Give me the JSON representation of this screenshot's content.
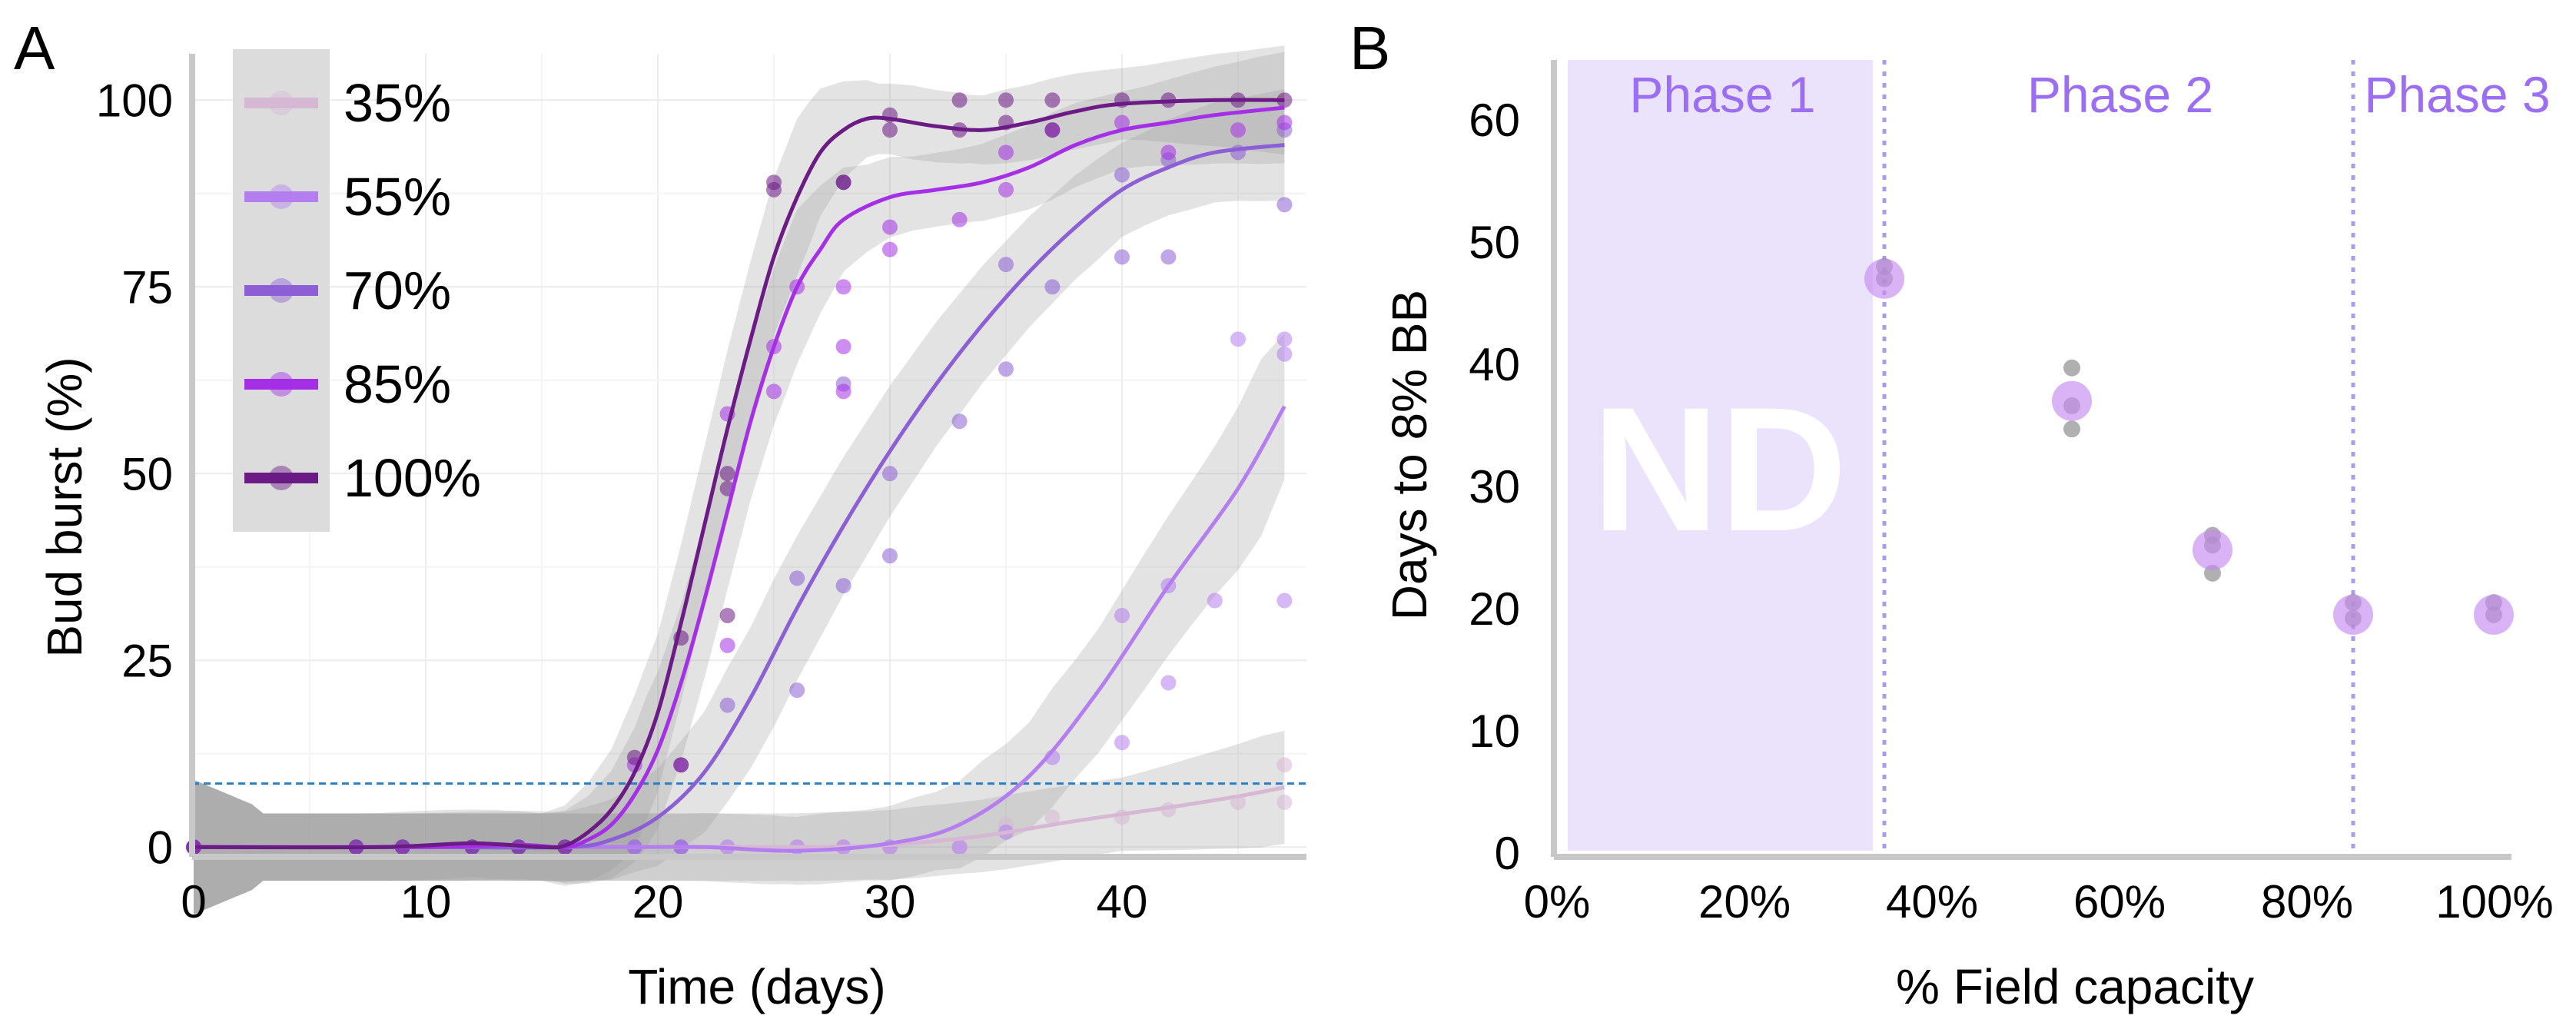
{
  "panel_a": {
    "panel_label": "A",
    "chart_data": {
      "type": "line",
      "title": "",
      "xlabel": "Time (days)",
      "ylabel": "Bud burst (%)",
      "xlim": [
        0,
        48
      ],
      "ylim": [
        -5,
        105
      ],
      "xticks": [
        0,
        10,
        20,
        30,
        40
      ],
      "yticks": [
        0,
        25,
        50,
        75,
        100
      ],
      "threshold_line": 8.5,
      "grid": true,
      "legend_position": "top-left",
      "series": [
        {
          "name": "35%",
          "color": "#d7b8d4",
          "curve": [
            [
              0,
              0
            ],
            [
              10,
              0
            ],
            [
              20,
              0
            ],
            [
              26,
              0
            ],
            [
              30,
              0.3
            ],
            [
              34,
              1.5
            ],
            [
              38,
              3.5
            ],
            [
              42,
              5.3
            ],
            [
              45,
              6.8
            ],
            [
              47,
              8
            ]
          ],
          "points": [
            [
              0,
              0
            ],
            [
              7,
              0
            ],
            [
              9,
              0
            ],
            [
              12,
              0
            ],
            [
              14,
              0
            ],
            [
              16,
              0
            ],
            [
              19,
              0
            ],
            [
              21,
              0
            ],
            [
              23,
              0
            ],
            [
              26,
              0
            ],
            [
              28,
              0
            ],
            [
              30,
              0
            ],
            [
              33,
              0
            ],
            [
              35,
              3
            ],
            [
              37,
              4
            ],
            [
              40,
              4
            ],
            [
              42,
              5
            ],
            [
              45,
              6
            ],
            [
              47,
              6
            ],
            [
              47,
              11
            ]
          ]
        },
        {
          "name": "55%",
          "color": "#b47ef0",
          "curve": [
            [
              0,
              0
            ],
            [
              10,
              0
            ],
            [
              18,
              0
            ],
            [
              22,
              0
            ],
            [
              26,
              -0.5
            ],
            [
              30,
              0.5
            ],
            [
              33,
              3
            ],
            [
              36,
              9.5
            ],
            [
              39,
              21
            ],
            [
              42,
              35
            ],
            [
              45,
              48
            ],
            [
              47,
              59
            ]
          ],
          "points": [
            [
              0,
              0
            ],
            [
              7,
              0
            ],
            [
              9,
              0
            ],
            [
              12,
              0
            ],
            [
              14,
              0
            ],
            [
              16,
              0
            ],
            [
              19,
              0
            ],
            [
              21,
              0
            ],
            [
              23,
              0
            ],
            [
              26,
              0
            ],
            [
              28,
              0
            ],
            [
              30,
              0
            ],
            [
              33,
              0
            ],
            [
              35,
              2
            ],
            [
              37,
              12
            ],
            [
              40,
              14
            ],
            [
              40,
              31
            ],
            [
              42,
              22
            ],
            [
              42,
              35
            ],
            [
              44,
              33
            ],
            [
              45,
              68
            ],
            [
              47,
              68
            ],
            [
              47,
              66
            ],
            [
              47,
              33
            ]
          ]
        },
        {
          "name": "70%",
          "color": "#8d5fd6",
          "curve": [
            [
              0,
              0
            ],
            [
              10,
              0
            ],
            [
              16,
              0
            ],
            [
              18,
              1
            ],
            [
              20,
              4
            ],
            [
              22,
              10
            ],
            [
              24,
              20
            ],
            [
              26,
              32
            ],
            [
              28,
              43
            ],
            [
              30,
              53
            ],
            [
              32,
              62
            ],
            [
              34,
              70
            ],
            [
              36,
              77
            ],
            [
              38,
              83
            ],
            [
              40,
              88
            ],
            [
              42,
              91
            ],
            [
              44,
              93
            ],
            [
              47,
              94
            ]
          ],
          "points": [
            [
              0,
              0
            ],
            [
              7,
              0
            ],
            [
              9,
              0
            ],
            [
              12,
              0
            ],
            [
              14,
              0
            ],
            [
              16,
              0
            ],
            [
              19,
              0
            ],
            [
              21,
              0
            ],
            [
              23,
              19
            ],
            [
              26,
              21
            ],
            [
              26,
              36
            ],
            [
              28,
              35
            ],
            [
              28,
              62
            ],
            [
              30,
              50
            ],
            [
              30,
              39
            ],
            [
              33,
              57
            ],
            [
              35,
              64
            ],
            [
              35,
              78
            ],
            [
              37,
              75
            ],
            [
              40,
              79
            ],
            [
              40,
              90
            ],
            [
              42,
              79
            ],
            [
              42,
              92
            ],
            [
              45,
              93
            ],
            [
              47,
              86
            ],
            [
              47,
              96
            ]
          ]
        },
        {
          "name": "85%",
          "color": "#a52fe6",
          "curve": [
            [
              0,
              0
            ],
            [
              10,
              0
            ],
            [
              14,
              0.3
            ],
            [
              16,
              0
            ],
            [
              17,
              1
            ],
            [
              18,
              3
            ],
            [
              19,
              7
            ],
            [
              20,
              13
            ],
            [
              21,
              22
            ],
            [
              22,
              33
            ],
            [
              23,
              45
            ],
            [
              24,
              57
            ],
            [
              25,
              67
            ],
            [
              26,
              75
            ],
            [
              27,
              80
            ],
            [
              28,
              84
            ],
            [
              30,
              87
            ],
            [
              32,
              88
            ],
            [
              34,
              89
            ],
            [
              36,
              91
            ],
            [
              38,
              94
            ],
            [
              40,
              96
            ],
            [
              42,
              97
            ],
            [
              44,
              98
            ],
            [
              47,
              99
            ]
          ],
          "points": [
            [
              0,
              0
            ],
            [
              19,
              11
            ],
            [
              21,
              11
            ],
            [
              23,
              58
            ],
            [
              23,
              27
            ],
            [
              25,
              61
            ],
            [
              25,
              67
            ],
            [
              26,
              75
            ],
            [
              28,
              61
            ],
            [
              28,
              67
            ],
            [
              28,
              75
            ],
            [
              30,
              83
            ],
            [
              30,
              80
            ],
            [
              33,
              84
            ],
            [
              35,
              88
            ],
            [
              35,
              93
            ],
            [
              37,
              96
            ],
            [
              40,
              97
            ],
            [
              42,
              93
            ],
            [
              45,
              96
            ],
            [
              47,
              97
            ]
          ]
        },
        {
          "name": "100%",
          "color": "#6b1a86",
          "curve": [
            [
              0,
              0
            ],
            [
              8,
              0
            ],
            [
              12,
              0.5
            ],
            [
              15,
              0
            ],
            [
              16,
              0.2
            ],
            [
              17,
              2
            ],
            [
              18,
              5
            ],
            [
              19,
              10
            ],
            [
              20,
              18
            ],
            [
              21,
              30
            ],
            [
              22,
              43
            ],
            [
              23,
              56
            ],
            [
              24,
              68
            ],
            [
              25,
              79
            ],
            [
              26,
              87
            ],
            [
              27,
              93
            ],
            [
              28,
              96
            ],
            [
              29,
              97.5
            ],
            [
              30,
              97.5
            ],
            [
              32,
              96.5
            ],
            [
              34,
              96
            ],
            [
              36,
              97
            ],
            [
              38,
              98.5
            ],
            [
              40,
              99.5
            ],
            [
              44,
              100
            ],
            [
              47,
              100
            ]
          ],
          "points": [
            [
              0,
              0
            ],
            [
              7,
              0
            ],
            [
              9,
              0
            ],
            [
              12,
              0
            ],
            [
              14,
              0
            ],
            [
              16,
              0
            ],
            [
              19,
              12
            ],
            [
              21,
              28
            ],
            [
              21,
              11
            ],
            [
              23,
              31
            ],
            [
              23,
              48
            ],
            [
              23,
              50
            ],
            [
              25,
              89
            ],
            [
              25,
              88
            ],
            [
              28,
              89
            ],
            [
              28,
              89
            ],
            [
              30,
              96
            ],
            [
              30,
              98
            ],
            [
              33,
              96
            ],
            [
              33,
              100
            ],
            [
              35,
              100
            ],
            [
              35,
              97
            ],
            [
              37,
              100
            ],
            [
              37,
              96
            ],
            [
              40,
              100
            ],
            [
              42,
              100
            ],
            [
              45,
              100
            ],
            [
              47,
              100
            ]
          ]
        }
      ]
    }
  },
  "panel_b": {
    "panel_label": "B",
    "chart_data": {
      "type": "scatter",
      "title": "",
      "xlabel": "% Field capacity",
      "ylabel": "Days to 8% BB",
      "xlim": [
        0,
        100
      ],
      "ylim": [
        0,
        65
      ],
      "xticks": [
        0,
        20,
        40,
        60,
        80,
        100
      ],
      "xtick_labels": [
        "0%",
        "20%",
        "40%",
        "60%",
        "80%",
        "100%"
      ],
      "yticks": [
        0,
        10,
        20,
        30,
        40,
        50,
        60
      ],
      "phase_dividers": [
        35,
        85
      ],
      "phases": [
        "Phase 1",
        "Phase 2",
        "Phase 3"
      ],
      "nd_region": [
        0,
        35
      ],
      "nd_label": "ND",
      "means": [
        [
          35,
          47
        ],
        [
          55,
          37
        ],
        [
          70,
          24.8
        ],
        [
          85,
          19.5
        ],
        [
          100,
          19.5
        ]
      ],
      "replicates": [
        [
          35,
          48
        ],
        [
          35,
          47
        ],
        [
          55,
          39.7
        ],
        [
          55,
          36.6
        ],
        [
          55,
          34.7
        ],
        [
          70,
          26
        ],
        [
          70,
          25.2
        ],
        [
          70,
          22.9
        ],
        [
          85,
          20.5
        ],
        [
          85,
          19.2
        ],
        [
          100,
          20.5
        ],
        [
          100,
          19.5
        ]
      ]
    }
  }
}
